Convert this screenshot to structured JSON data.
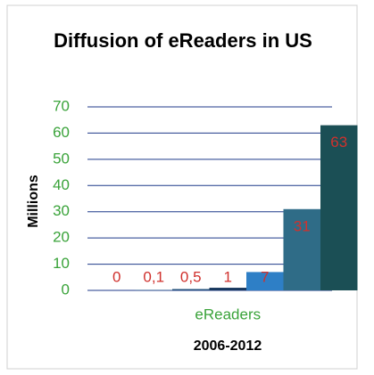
{
  "chart_data": {
    "type": "bar",
    "title": "Diffusion of eReaders in US",
    "y_label": "Millions",
    "x_label": "2006-2012",
    "categories": [
      "eReaders"
    ],
    "series": [
      {
        "color": "#2a6f8f",
        "values": [
          0
        ],
        "value_labels": [
          "0"
        ]
      },
      {
        "color": "#1d6380",
        "values": [
          0.1
        ],
        "value_labels": [
          "0,1"
        ]
      },
      {
        "color": "#1f4e79",
        "values": [
          0.5
        ],
        "value_labels": [
          "0,5"
        ]
      },
      {
        "color": "#17375e",
        "values": [
          1
        ],
        "value_labels": [
          "1"
        ]
      },
      {
        "color": "#2e7fc6",
        "values": [
          7
        ],
        "value_labels": [
          "7"
        ]
      },
      {
        "color": "#2f6c87",
        "values": [
          31
        ],
        "value_labels": [
          "31"
        ]
      },
      {
        "color": "#1b4f55",
        "values": [
          63
        ],
        "value_labels": [
          "63"
        ]
      }
    ],
    "ylim": [
      0,
      70
    ],
    "yticks": [
      0,
      10,
      20,
      30,
      40,
      50,
      60,
      70
    ],
    "grid": true
  }
}
